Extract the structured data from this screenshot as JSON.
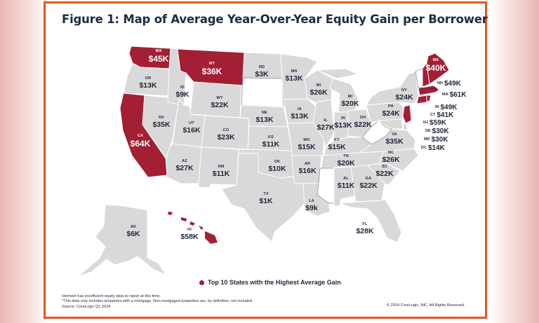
{
  "title": "Figure 1: Map of Average Year-Over-Year Equity Gain per Borrower",
  "colors": {
    "frame": "#e8541e",
    "top10": "#a31f34",
    "other": "#d9d9d9",
    "no_data": "#ffffff",
    "text": "#1f2a44"
  },
  "states": [
    {
      "abbr": "WA",
      "value": "$45K",
      "top10": true
    },
    {
      "abbr": "OR",
      "value": "$13K",
      "top10": false
    },
    {
      "abbr": "CA",
      "value": "$64K",
      "top10": true
    },
    {
      "abbr": "NV",
      "value": "$35K",
      "top10": false
    },
    {
      "abbr": "ID",
      "value": "$9K",
      "top10": false
    },
    {
      "abbr": "MT",
      "value": "$36K",
      "top10": true
    },
    {
      "abbr": "WY",
      "value": "$22K",
      "top10": false
    },
    {
      "abbr": "UT",
      "value": "$16K",
      "top10": false
    },
    {
      "abbr": "AZ",
      "value": "$27K",
      "top10": false
    },
    {
      "abbr": "CO",
      "value": "$23K",
      "top10": false
    },
    {
      "abbr": "NM",
      "value": "$11K",
      "top10": false
    },
    {
      "abbr": "ND",
      "value": "$3K",
      "top10": false
    },
    {
      "abbr": "NE",
      "value": "$13K",
      "top10": false
    },
    {
      "abbr": "KS",
      "value": "$11K",
      "top10": false
    },
    {
      "abbr": "OK",
      "value": "$10K",
      "top10": false
    },
    {
      "abbr": "TX",
      "value": "$1K",
      "top10": false
    },
    {
      "abbr": "MN",
      "value": "$13K",
      "top10": false
    },
    {
      "abbr": "IA",
      "value": "$13K",
      "top10": false
    },
    {
      "abbr": "MO",
      "value": "$15K",
      "top10": false
    },
    {
      "abbr": "AR",
      "value": "$16K",
      "top10": false
    },
    {
      "abbr": "LA",
      "value": "$9k",
      "top10": false
    },
    {
      "abbr": "WI",
      "value": "$26K",
      "top10": false
    },
    {
      "abbr": "IL",
      "value": "$27K",
      "top10": false
    },
    {
      "abbr": "MI",
      "value": "$20K",
      "top10": false
    },
    {
      "abbr": "IN",
      "value": "$13K",
      "top10": false
    },
    {
      "abbr": "OH",
      "value": "$22K",
      "top10": false
    },
    {
      "abbr": "KY",
      "value": "$15K",
      "top10": false
    },
    {
      "abbr": "TN",
      "value": "$20K",
      "top10": false
    },
    {
      "abbr": "AL",
      "value": "$11K",
      "top10": false
    },
    {
      "abbr": "GA",
      "value": "$22K",
      "top10": false
    },
    {
      "abbr": "FL",
      "value": "$28K",
      "top10": false
    },
    {
      "abbr": "SC",
      "value": "$22K",
      "top10": false
    },
    {
      "abbr": "NC",
      "value": "$26K",
      "top10": false
    },
    {
      "abbr": "VA",
      "value": "$35K",
      "top10": false
    },
    {
      "abbr": "PA",
      "value": "$24K",
      "top10": false
    },
    {
      "abbr": "NY",
      "value": "$24K",
      "top10": false
    },
    {
      "abbr": "ME",
      "value": "$40K",
      "top10": true
    },
    {
      "abbr": "AK",
      "value": "$6K",
      "top10": false
    },
    {
      "abbr": "HI",
      "value": "$58K",
      "top10": true
    }
  ],
  "northeast": [
    {
      "abbr": "NH",
      "value": "$49K",
      "top10": true
    },
    {
      "abbr": "MA",
      "value": "$61K",
      "top10": true
    },
    {
      "abbr": "RI",
      "value": "$49K",
      "top10": true
    },
    {
      "abbr": "CT",
      "value": "$41K",
      "top10": true
    },
    {
      "abbr": "NJ",
      "value": "$59K",
      "top10": true
    },
    {
      "abbr": "DE",
      "value": "$30K",
      "top10": false
    },
    {
      "abbr": "MD",
      "value": "$30K",
      "top10": false
    },
    {
      "abbr": "DC",
      "value": "$14K",
      "top10": false
    }
  ],
  "legend": {
    "label": "Top 10 States with the Highest Average Gain"
  },
  "notes": [
    "Vermont has insufficient equity data to report at this time.",
    "*This data only includes properties with a mortgage. Non-mortgaged properties are, by definition, not included.",
    "Source: CoreLogic Q1 2024"
  ],
  "copyright": "© 2024 CoreLogic, INC. All Rights Reserved."
}
